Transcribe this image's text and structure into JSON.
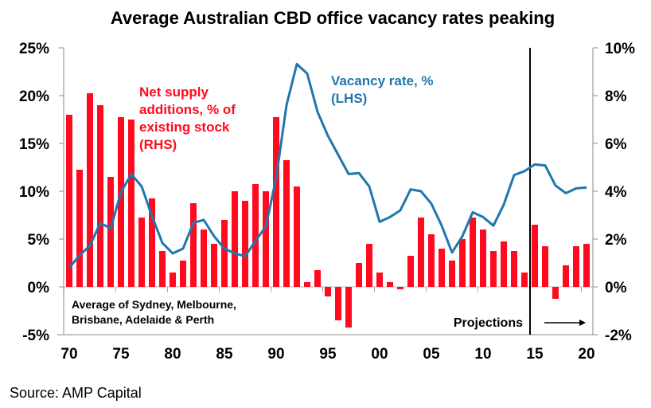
{
  "chart_data": {
    "type": "bar+line",
    "title": "Average Australian CBD office vacancy rates peaking",
    "source": "Source: AMP Capital",
    "x": [
      1970,
      1971,
      1972,
      1973,
      1974,
      1975,
      1976,
      1977,
      1978,
      1979,
      1980,
      1981,
      1982,
      1983,
      1984,
      1985,
      1986,
      1987,
      1988,
      1989,
      1990,
      1991,
      1992,
      1993,
      1994,
      1995,
      1996,
      1997,
      1998,
      1999,
      2000,
      2001,
      2002,
      2003,
      2004,
      2005,
      2006,
      2007,
      2008,
      2009,
      2010,
      2011,
      2012,
      2013,
      2014,
      2015,
      2016,
      2017,
      2018,
      2019,
      2020
    ],
    "xticks": [
      1970,
      1975,
      1980,
      1985,
      1990,
      1995,
      2000,
      2005,
      2010,
      2015,
      2020
    ],
    "xtick_labels": [
      "70",
      "75",
      "80",
      "85",
      "90",
      "95",
      "00",
      "05",
      "10",
      "15",
      "20"
    ],
    "left_axis": {
      "label": "",
      "ylim": [
        -5,
        25
      ],
      "ticks": [
        25,
        20,
        15,
        10,
        5,
        0,
        -5
      ],
      "tick_labels": [
        "25%",
        "20%",
        "15%",
        "10%",
        "5%",
        "0%",
        "-5%"
      ]
    },
    "right_axis": {
      "label": "",
      "ylim": [
        -2,
        10
      ],
      "ticks": [
        10,
        8,
        6,
        4,
        2,
        0,
        -2
      ],
      "tick_labels": [
        "10%",
        "8%",
        "6%",
        "4%",
        "2%",
        "0%",
        "-2%"
      ]
    },
    "series": [
      {
        "name": "Net supply additions, % of existing stock (RHS)",
        "type": "bar",
        "axis": "right",
        "color": "#ff0a1e",
        "values": [
          7.2,
          4.9,
          8.1,
          7.6,
          4.6,
          7.1,
          7.0,
          2.9,
          3.7,
          1.5,
          0.6,
          1.1,
          3.5,
          2.4,
          1.8,
          2.8,
          4.0,
          3.6,
          4.3,
          4.0,
          7.1,
          5.3,
          4.2,
          0.2,
          0.7,
          -0.4,
          -1.4,
          -1.7,
          1.0,
          1.8,
          0.6,
          0.2,
          -0.1,
          1.3,
          2.9,
          2.2,
          1.6,
          1.1,
          2.0,
          2.9,
          2.4,
          1.5,
          1.9,
          1.5,
          0.6,
          2.6,
          1.7,
          -0.5,
          0.9,
          1.7,
          1.8
        ]
      },
      {
        "name": "Vacancy rate, % (LHS)",
        "type": "line",
        "axis": "left",
        "color": "#1f77ae",
        "values": [
          2.0,
          3.3,
          4.3,
          6.7,
          6.1,
          9.9,
          11.8,
          10.5,
          7.4,
          4.6,
          3.5,
          4.0,
          6.7,
          7.0,
          5.3,
          4.0,
          3.5,
          3.2,
          4.8,
          6.3,
          11.4,
          19.0,
          23.3,
          22.3,
          18.3,
          15.8,
          13.8,
          11.8,
          11.9,
          10.5,
          6.8,
          7.3,
          8.0,
          10.2,
          10.0,
          8.7,
          6.4,
          3.6,
          5.3,
          7.8,
          7.3,
          6.4,
          8.6,
          11.7,
          12.1,
          12.8,
          12.7,
          10.6,
          9.8,
          10.3,
          10.4
        ]
      }
    ],
    "projection_start": 2015,
    "annotations": {
      "supply_label": [
        "Net supply",
        "additions, % of",
        "existing  stock",
        "(RHS)"
      ],
      "vacancy_label": [
        "Vacancy rate, %",
        "(LHS)"
      ],
      "note": [
        "Average of Sydney, Melbourne,",
        "Brisbane, Adelaide & Perth"
      ],
      "projections": "Projections"
    },
    "grid": false,
    "legend": "none"
  }
}
